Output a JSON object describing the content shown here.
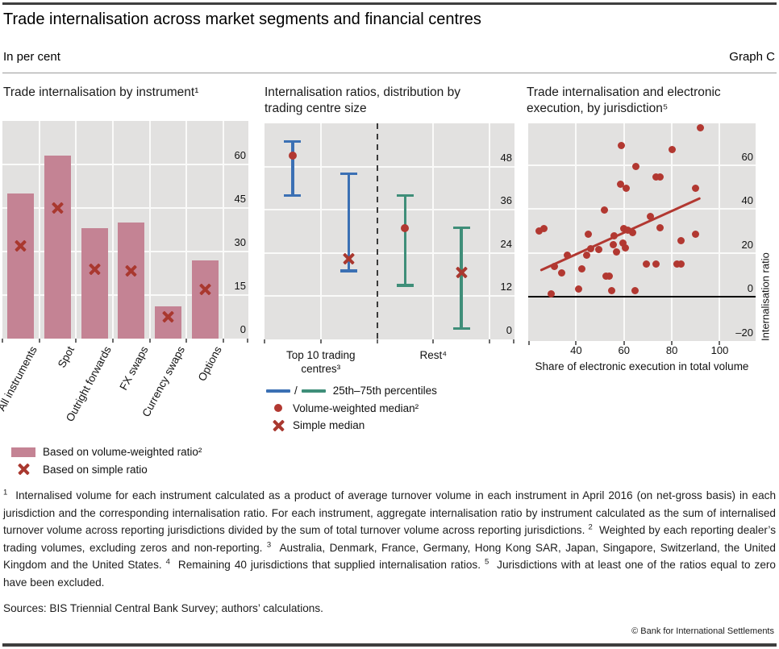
{
  "header": {
    "title": "Trade internalisation across market segments and financial centres",
    "subtitle": "In per cent",
    "graph_label": "Graph C"
  },
  "colors": {
    "bar": "#c48394",
    "cross": "#a9382f",
    "dot": "#b23831",
    "blue": "#3b70b4",
    "green": "#3f8e79",
    "panel_bg": "#e2e1e0",
    "grid": "#fafaf9"
  },
  "chart_data": [
    {
      "type": "bar",
      "title_lines": [
        "Trade internalisation by instrument¹"
      ],
      "categories": [
        "All instruments",
        "Spot",
        "Outright forwards",
        "FX swaps",
        "Currency swaps",
        "Options"
      ],
      "series": [
        {
          "name": "Based on volume-weighted ratio²",
          "marker": "bar",
          "values": [
            50,
            63,
            38,
            40,
            11,
            27
          ]
        },
        {
          "name": "Based on simple ratio",
          "marker": "cross",
          "values": [
            32,
            45,
            24,
            23.5,
            7.5,
            17
          ]
        }
      ],
      "ylim": [
        0,
        75
      ],
      "yticks": [
        0,
        15,
        30,
        45,
        60
      ],
      "unit": "per cent"
    },
    {
      "type": "range",
      "title_lines": [
        "Internalisation ratios, distribution by",
        "trading centre size"
      ],
      "groups": [
        {
          "label_lines": [
            "Top 10 trading",
            "centres³"
          ]
        },
        {
          "label_lines": [
            "Rest⁴"
          ]
        }
      ],
      "items": [
        {
          "group": 0,
          "color": "blue",
          "p25": 40,
          "p75": 55,
          "median_type": "dot",
          "median": 51
        },
        {
          "group": 0,
          "color": "blue",
          "p25": 19,
          "p75": 46,
          "median_type": "cross",
          "median": 22.5
        },
        {
          "group": 1,
          "color": "green",
          "p25": 15,
          "p75": 40,
          "median_type": "dot",
          "median": 31
        },
        {
          "group": 1,
          "color": "green",
          "p25": 3,
          "p75": 31,
          "median_type": "cross",
          "median": 18.5
        }
      ],
      "ylim": [
        0,
        60
      ],
      "yticks": [
        0,
        12,
        24,
        36,
        48
      ],
      "legend": [
        {
          "marker": "lines",
          "label": "25th–75th percentiles"
        },
        {
          "marker": "dot",
          "label": "Volume-weighted median²"
        },
        {
          "marker": "cross",
          "label": "Simple median"
        }
      ]
    },
    {
      "type": "scatter",
      "title_lines": [
        "Trade internalisation and electronic",
        "execution, by jurisdiction⁵"
      ],
      "xlabel": "Share of electronic execution in total volume",
      "ylabel": "Internalisation ratio",
      "xlim": [
        20,
        115
      ],
      "ylim": [
        -20,
        79
      ],
      "xticks": [
        40,
        60,
        80,
        100
      ],
      "yticks": [
        60,
        40,
        20,
        0,
        -20
      ],
      "ytick_labels": [
        "60",
        "40",
        "20",
        "0",
        "–20"
      ],
      "points": [
        [
          92,
          77
        ],
        [
          59,
          69
        ],
        [
          80,
          67
        ],
        [
          65,
          59.5
        ],
        [
          73.5,
          54.5
        ],
        [
          75,
          54.5
        ],
        [
          58.5,
          51.5
        ],
        [
          61,
          49.5
        ],
        [
          90,
          49.5
        ],
        [
          52,
          39.5
        ],
        [
          71,
          36.5
        ],
        [
          24.5,
          30
        ],
        [
          26.5,
          31
        ],
        [
          75,
          31.5
        ],
        [
          45,
          28.5
        ],
        [
          56,
          28
        ],
        [
          60,
          31
        ],
        [
          61.5,
          30.5
        ],
        [
          63.5,
          29.5
        ],
        [
          55.5,
          24
        ],
        [
          84,
          25.5
        ],
        [
          90,
          28.5
        ],
        [
          59.5,
          24.5
        ],
        [
          46,
          22
        ],
        [
          49.5,
          21.5
        ],
        [
          57,
          20.5
        ],
        [
          60.5,
          22.5
        ],
        [
          44.5,
          19
        ],
        [
          36.5,
          19
        ],
        [
          31,
          14
        ],
        [
          42.5,
          13
        ],
        [
          34,
          11
        ],
        [
          52.5,
          9.5
        ],
        [
          54,
          9.5
        ],
        [
          69.5,
          15
        ],
        [
          73.5,
          15
        ],
        [
          82,
          15
        ],
        [
          84,
          15
        ],
        [
          41,
          3.5
        ],
        [
          55,
          3
        ],
        [
          64.5,
          3
        ],
        [
          29.5,
          1.5
        ]
      ],
      "trend": {
        "x1": 25,
        "y1": 12,
        "x2": 92,
        "y2": 45
      },
      "zero_line": 0
    }
  ],
  "footnotes": [
    {
      "sup": "1",
      "text": "Internalised volume for each instrument calculated as a product of average turnover volume in each instrument in April 2016 (on net-gross basis) in each jurisdiction and the corresponding internalisation ratio. For each instrument, aggregate internalisation ratio by instrument calculated as the sum of internalised turnover volume across reporting jurisdictions divided by the sum of total turnover volume across reporting jurisdictions."
    },
    {
      "sup": "2",
      "text": "Weighted by each reporting dealer’s trading volumes, excluding zeros and non-reporting."
    },
    {
      "sup": "3",
      "text": "Australia, Denmark, France, Germany, Hong Kong SAR, Japan, Singapore, Switzerland, the United Kingdom and the United States."
    },
    {
      "sup": "4",
      "text": "Remaining 40 jurisdictions that supplied internalisation ratios."
    },
    {
      "sup": "5",
      "text": "Jurisdictions with at least one of the ratios equal to zero have been excluded."
    }
  ],
  "footer": {
    "sources": "Sources: BIS Triennial Central Bank Survey; authors’ calculations.",
    "copyright": "© Bank for International Settlements"
  }
}
